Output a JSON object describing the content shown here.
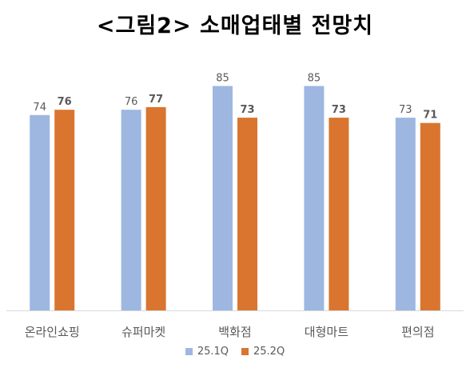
{
  "title": "<그림2> 소매업태별 전망치",
  "chart_data": {
    "type": "bar",
    "categories": [
      "온라인쇼핑",
      "슈퍼마켓",
      "백화점",
      "대형마트",
      "편의점"
    ],
    "series": [
      {
        "name": "25.1Q",
        "values": [
          74,
          76,
          85,
          85,
          73
        ],
        "color": "#9DB7E1",
        "label_weight": "normal"
      },
      {
        "name": "25.2Q",
        "values": [
          76,
          77,
          73,
          73,
          71
        ],
        "color": "#D9752F",
        "label_weight": "bold"
      }
    ],
    "ylim": [
      0,
      100
    ],
    "grid": false,
    "legend": "bottom",
    "axis_color": "#d9d9d9"
  }
}
